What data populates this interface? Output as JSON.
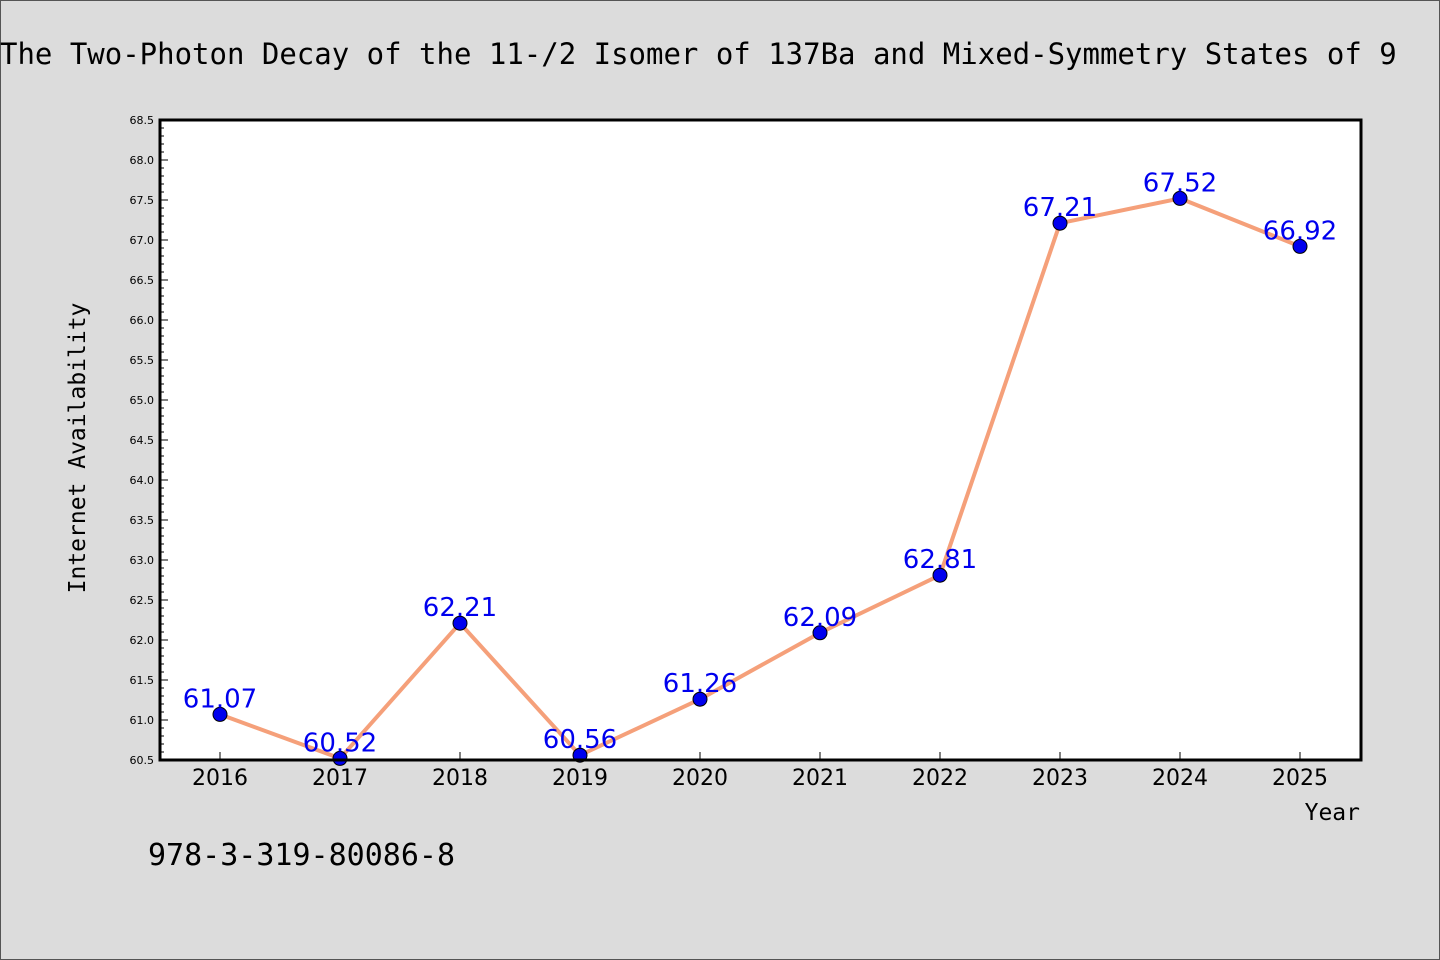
{
  "footer_code": "978-3-319-80086-8",
  "colors": {
    "background": "#dcdcdc",
    "plot_area": "#ffffff",
    "line": "#f5a07a",
    "marker": "#0000ee",
    "label": "#0000ee"
  },
  "chart_data": {
    "type": "line",
    "title": "The Two-Photon Decay of the 11-/2 Isomer of 137Ba and Mixed-Symmetry States of 9",
    "xlabel": "Year",
    "ylabel": "Internet Availability",
    "ylim": [
      60.5,
      68.5
    ],
    "ytick_step": 0.1,
    "ylabel_step": 0.5,
    "grid": false,
    "legend": "none",
    "categories": [
      "2016",
      "2017",
      "2018",
      "2019",
      "2020",
      "2021",
      "2022",
      "2023",
      "2024",
      "2025"
    ],
    "series": [
      {
        "values": [
          61.07,
          60.52,
          62.21,
          60.56,
          61.26,
          62.09,
          62.81,
          67.21,
          67.52,
          66.92
        ],
        "labels": [
          "61.07",
          "60.52",
          "62.21",
          "60.56",
          "61.26",
          "62.09",
          "62.81",
          "67.21",
          "67.52",
          "66.92"
        ]
      }
    ]
  }
}
